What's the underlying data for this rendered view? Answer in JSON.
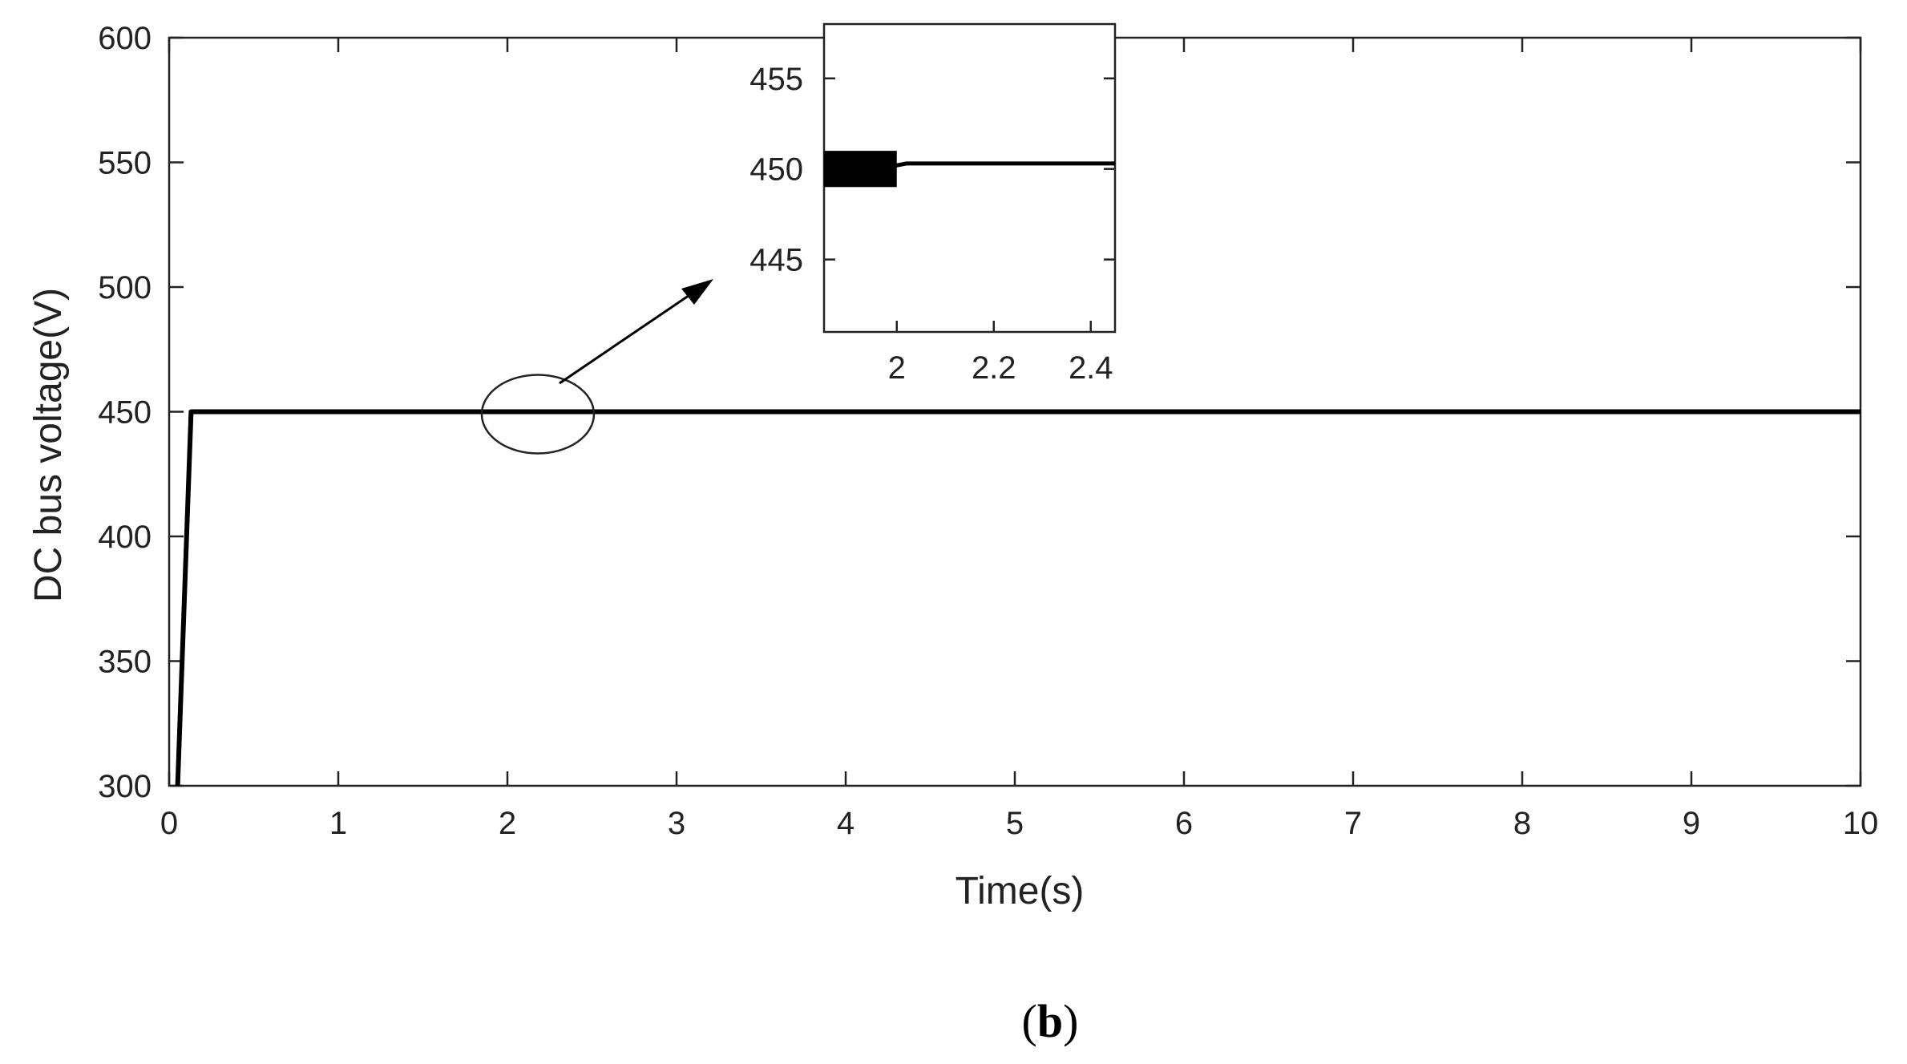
{
  "chart_data": [
    {
      "type": "line",
      "role": "main",
      "xlabel": "Time(s)",
      "ylabel": "DC bus voltage(V)",
      "xlim": [
        0,
        10
      ],
      "ylim": [
        300,
        600
      ],
      "xticks": [
        0,
        1,
        2,
        3,
        4,
        5,
        6,
        7,
        8,
        9,
        10
      ],
      "yticks": [
        300,
        350,
        400,
        450,
        500,
        550,
        600
      ],
      "grid": false,
      "series": [
        {
          "x": [
            0.05,
            0.13,
            0.2,
            1,
            2,
            3,
            4,
            5,
            6,
            7,
            8,
            9,
            10
          ],
          "y": [
            300,
            450,
            450,
            450,
            450,
            450,
            450,
            450,
            450,
            450,
            450,
            450,
            450
          ]
        }
      ],
      "annotations": [
        "ellipse around t≈2 s, arrow to zoom inset"
      ]
    },
    {
      "type": "line",
      "role": "inset-zoom",
      "xlim": [
        1.85,
        2.45
      ],
      "ylim": [
        441,
        458
      ],
      "xticks": [
        2,
        2.2,
        2.4
      ],
      "xtick_labels": [
        "2",
        "2.2",
        "2.4"
      ],
      "yticks": [
        445,
        450,
        455
      ],
      "series": [
        {
          "x": [
            1.85,
            2.0,
            2.02,
            2.45
          ],
          "y": [
            450.2,
            450.2,
            450.3,
            450.3
          ],
          "ripple_band": {
            "x_end": 2.0,
            "ymin": 449.0,
            "ymax": 451.0
          }
        }
      ]
    }
  ],
  "panel_label": {
    "open": "(",
    "letter": "b",
    "close": ")"
  },
  "colors": {
    "line": "#000000",
    "axis": "#222222",
    "background": "#ffffff"
  }
}
